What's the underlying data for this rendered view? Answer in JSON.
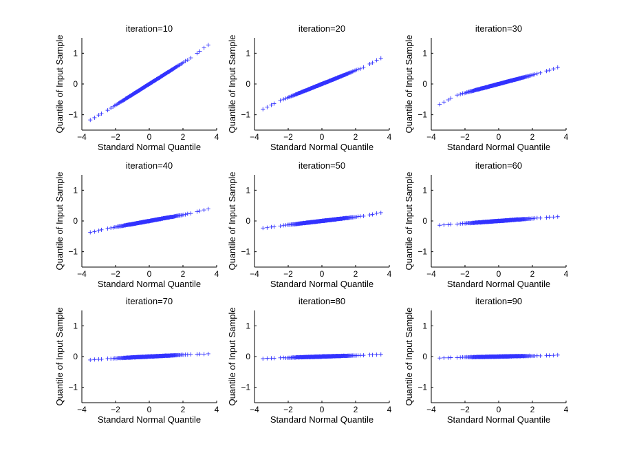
{
  "figure": {
    "colors": {
      "marker": "#3333ff",
      "axis": "#000000",
      "background": "#ffffff"
    },
    "marker_symbol": "+"
  },
  "chart_data": [
    {
      "type": "scatter",
      "title": "iteration=10",
      "xlabel": "Standard Normal Quantile",
      "ylabel": "Quantile of Input Sample",
      "xlim": [
        -4,
        4
      ],
      "ylim": [
        -1.5,
        1.5
      ],
      "xticks": [
        -4,
        -2,
        0,
        2,
        4
      ],
      "yticks": [
        -1,
        0,
        1
      ],
      "x_range": [
        -3.5,
        3.5
      ],
      "slope": 0.345,
      "y_min_end": -1.17,
      "y_max_end": 1.27
    },
    {
      "type": "scatter",
      "title": "iteration=20",
      "xlabel": "Standard Normal Quantile",
      "ylabel": "Quantile of Input Sample",
      "xlim": [
        -4,
        4
      ],
      "ylim": [
        -1.5,
        1.5
      ],
      "xticks": [
        -4,
        -2,
        0,
        2,
        4
      ],
      "yticks": [
        -1,
        0,
        1
      ],
      "x_range": [
        -3.5,
        3.5
      ],
      "slope": 0.22,
      "y_min_end": -0.82,
      "y_max_end": 0.84
    },
    {
      "type": "scatter",
      "title": "iteration=30",
      "xlabel": "Standard Normal Quantile",
      "ylabel": "Quantile of Input Sample",
      "xlim": [
        -4,
        4
      ],
      "ylim": [
        -1.5,
        1.5
      ],
      "xticks": [
        -4,
        -2,
        0,
        2,
        4
      ],
      "yticks": [
        -1,
        0,
        1
      ],
      "x_range": [
        -3.5,
        3.5
      ],
      "slope": 0.145,
      "y_min_end": -0.66,
      "y_max_end": 0.54
    },
    {
      "type": "scatter",
      "title": "iteration=40",
      "xlabel": "Standard Normal Quantile",
      "ylabel": "Quantile of Input Sample",
      "xlim": [
        -4,
        4
      ],
      "ylim": [
        -1.5,
        1.5
      ],
      "xticks": [
        -4,
        -2,
        0,
        2,
        4
      ],
      "yticks": [
        -1,
        0,
        1
      ],
      "x_range": [
        -3.5,
        3.5
      ],
      "slope": 0.1,
      "y_min_end": -0.37,
      "y_max_end": 0.39
    },
    {
      "type": "scatter",
      "title": "iteration=50",
      "xlabel": "Standard Normal Quantile",
      "ylabel": "Quantile of Input Sample",
      "xlim": [
        -4,
        4
      ],
      "ylim": [
        -1.5,
        1.5
      ],
      "xticks": [
        -4,
        -2,
        0,
        2,
        4
      ],
      "yticks": [
        -1,
        0,
        1
      ],
      "x_range": [
        -3.5,
        3.5
      ],
      "slope": 0.065,
      "y_min_end": -0.23,
      "y_max_end": 0.27
    },
    {
      "type": "scatter",
      "title": "iteration=60",
      "xlabel": "Standard Normal Quantile",
      "ylabel": "Quantile of Input Sample",
      "xlim": [
        -4,
        4
      ],
      "ylim": [
        -1.5,
        1.5
      ],
      "xticks": [
        -4,
        -2,
        0,
        2,
        4
      ],
      "yticks": [
        -1,
        0,
        1
      ],
      "x_range": [
        -3.5,
        3.5
      ],
      "slope": 0.04,
      "y_min_end": -0.14,
      "y_max_end": 0.14
    },
    {
      "type": "scatter",
      "title": "iteration=70",
      "xlabel": "Standard Normal Quantile",
      "ylabel": "Quantile of Input Sample",
      "xlim": [
        -4,
        4
      ],
      "ylim": [
        -1.5,
        1.5
      ],
      "xticks": [
        -4,
        -2,
        0,
        2,
        4
      ],
      "yticks": [
        -1,
        0,
        1
      ],
      "x_range": [
        -3.5,
        3.5
      ],
      "slope": 0.028,
      "y_min_end": -0.11,
      "y_max_end": 0.09
    },
    {
      "type": "scatter",
      "title": "iteration=80",
      "xlabel": "Standard Normal Quantile",
      "ylabel": "Quantile of Input Sample",
      "xlim": [
        -4,
        4
      ],
      "ylim": [
        -1.5,
        1.5
      ],
      "xticks": [
        -4,
        -2,
        0,
        2,
        4
      ],
      "yticks": [
        -1,
        0,
        1
      ],
      "x_range": [
        -3.5,
        3.5
      ],
      "slope": 0.018,
      "y_min_end": -0.07,
      "y_max_end": 0.07
    },
    {
      "type": "scatter",
      "title": "iteration=90",
      "xlabel": "Standard Normal Quantile",
      "ylabel": "Quantile of Input Sample",
      "xlim": [
        -4,
        4
      ],
      "ylim": [
        -1.5,
        1.5
      ],
      "xticks": [
        -4,
        -2,
        0,
        2,
        4
      ],
      "yticks": [
        -1,
        0,
        1
      ],
      "x_range": [
        -3.5,
        3.5
      ],
      "slope": 0.012,
      "y_min_end": -0.05,
      "y_max_end": 0.05
    }
  ]
}
